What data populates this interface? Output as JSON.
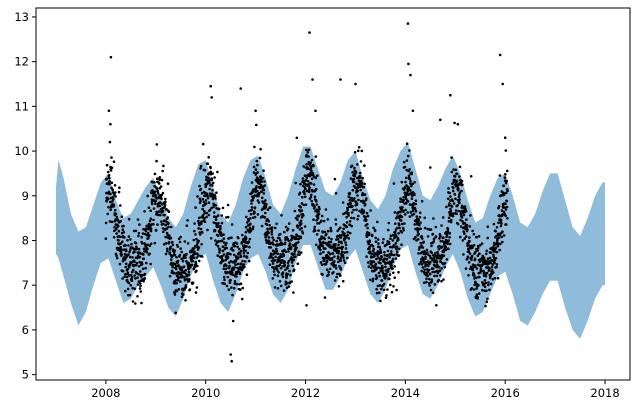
{
  "chart_data": {
    "type": "scatter",
    "title": "",
    "xlabel": "",
    "ylabel": "",
    "xlim": [
      2006.6,
      2018.5
    ],
    "ylim": [
      4.88,
      13.2
    ],
    "x_ticks": [
      2008,
      2010,
      2012,
      2014,
      2016,
      2018
    ],
    "x_tick_labels": [
      "2008",
      "2010",
      "2012",
      "2014",
      "2016",
      "2018"
    ],
    "y_ticks": [
      5,
      6,
      7,
      8,
      9,
      10,
      11,
      12,
      13
    ],
    "y_tick_labels": [
      "5",
      "6",
      "7",
      "8",
      "9",
      "10",
      "11",
      "12",
      "13"
    ],
    "grid": false,
    "point_color": "#000000",
    "band_color": "#8fbcdb",
    "forecast_band": {
      "x": [
        2007.0,
        2007.05,
        2007.15,
        2007.3,
        2007.45,
        2007.6,
        2007.75,
        2007.9,
        2008.05,
        2008.2,
        2008.35,
        2008.5,
        2008.65,
        2008.8,
        2008.95,
        2009.1,
        2009.25,
        2009.4,
        2009.55,
        2009.7,
        2009.85,
        2010.0,
        2010.15,
        2010.3,
        2010.45,
        2010.6,
        2010.75,
        2010.9,
        2011.05,
        2011.2,
        2011.35,
        2011.5,
        2011.65,
        2011.8,
        2011.95,
        2012.1,
        2012.25,
        2012.4,
        2012.55,
        2012.7,
        2012.85,
        2013.0,
        2013.15,
        2013.3,
        2013.45,
        2013.6,
        2013.75,
        2013.9,
        2014.05,
        2014.2,
        2014.35,
        2014.5,
        2014.65,
        2014.8,
        2014.95,
        2015.1,
        2015.25,
        2015.4,
        2015.55,
        2015.7,
        2015.85,
        2016.0,
        2016.15,
        2016.3,
        2016.45,
        2016.6,
        2016.75,
        2016.9,
        2017.05,
        2017.2,
        2017.35,
        2017.5,
        2017.65,
        2017.8,
        2017.95,
        2018.0
      ],
      "lower": [
        7.7,
        7.6,
        7.2,
        6.6,
        6.1,
        6.4,
        7.0,
        7.5,
        7.6,
        7.1,
        6.6,
        6.7,
        7.0,
        7.2,
        7.4,
        7.0,
        6.5,
        6.3,
        6.7,
        7.2,
        7.6,
        7.7,
        7.1,
        6.6,
        6.4,
        6.8,
        7.3,
        7.6,
        7.7,
        7.3,
        6.8,
        6.6,
        6.9,
        7.5,
        7.9,
        7.9,
        7.4,
        6.9,
        6.9,
        7.2,
        7.6,
        7.8,
        7.3,
        6.8,
        6.6,
        6.9,
        7.4,
        7.8,
        7.9,
        7.3,
        6.8,
        6.7,
        7.0,
        7.4,
        7.7,
        7.3,
        6.7,
        6.3,
        6.4,
        6.8,
        7.2,
        7.3,
        6.8,
        6.2,
        6.1,
        6.4,
        6.8,
        7.1,
        7.1,
        6.5,
        6.0,
        5.8,
        6.2,
        6.7,
        7.0,
        7.0
      ],
      "upper": [
        9.2,
        9.8,
        9.4,
        8.6,
        8.2,
        8.3,
        8.8,
        9.3,
        9.5,
        8.9,
        8.5,
        8.6,
        8.9,
        9.2,
        9.4,
        9.0,
        8.5,
        8.3,
        8.6,
        9.2,
        9.7,
        9.8,
        9.2,
        8.6,
        8.4,
        8.8,
        9.4,
        9.8,
        9.9,
        9.4,
        8.8,
        8.6,
        9.0,
        9.6,
        10.1,
        10.1,
        9.6,
        9.1,
        9.0,
        9.3,
        9.8,
        10.0,
        9.4,
        8.9,
        8.7,
        9.0,
        9.6,
        10.0,
        10.2,
        9.6,
        9.0,
        8.9,
        9.2,
        9.6,
        9.9,
        9.5,
        8.9,
        8.4,
        8.5,
        9.0,
        9.4,
        9.5,
        9.0,
        8.4,
        8.3,
        8.6,
        9.1,
        9.5,
        9.5,
        8.9,
        8.3,
        8.1,
        8.5,
        9.0,
        9.3,
        9.3
      ]
    },
    "outliers": {
      "x": [
        2008.1,
        2008.06,
        2008.09,
        2009.02,
        2010.1,
        2010.12,
        2010.5,
        2010.52,
        2010.55,
        2010.7,
        2011.0,
        2012.02,
        2012.08,
        2012.14,
        2012.2,
        2012.7,
        2013.0,
        2013.5,
        2014.05,
        2014.06,
        2014.1,
        2014.15,
        2014.9,
        2014.7,
        2015.05,
        2015.9,
        2015.95,
        2016.0
      ],
      "y": [
        12.1,
        10.9,
        10.6,
        10.15,
        11.45,
        11.2,
        5.45,
        5.3,
        6.2,
        11.4,
        10.9,
        6.55,
        12.65,
        11.6,
        10.9,
        11.6,
        11.5,
        6.65,
        12.85,
        11.95,
        11.7,
        10.9,
        11.25,
        10.7,
        10.6,
        12.15,
        11.5,
        10.3
      ]
    },
    "regular_points": {
      "count": 2800,
      "x_range": [
        2008.0,
        2016.05
      ],
      "seasonal_model": "mean ≈ 8.0 + 0.85·cos(2π(t−0.05)) with yearly variation",
      "spread": 0.35
    }
  }
}
